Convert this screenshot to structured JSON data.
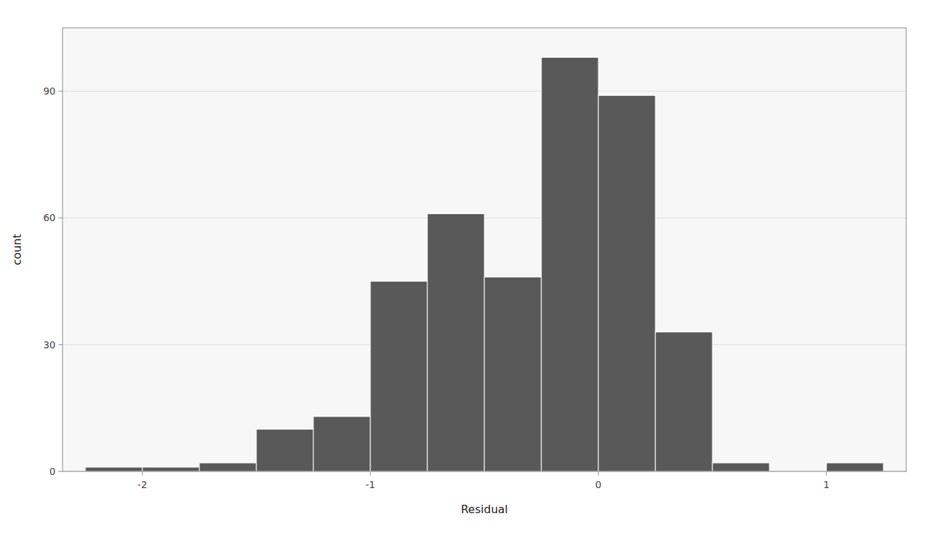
{
  "chart_data": {
    "type": "histogram",
    "xlabel": "Residual",
    "ylabel": "count",
    "bins": [
      -2.25,
      -2.0,
      -1.75,
      -1.5,
      -1.25,
      -1.0,
      -0.75,
      -0.5,
      -0.25,
      0.0,
      0.25,
      0.5,
      0.75,
      1.0,
      1.25
    ],
    "values": [
      1,
      1,
      2,
      10,
      13,
      45,
      61,
      46,
      98,
      89,
      33,
      2,
      0,
      2
    ],
    "color": "#595959",
    "xlim": [
      -2.35,
      1.35
    ],
    "xticks": [
      -2,
      -1,
      0,
      1
    ],
    "ylim": [
      0,
      105
    ],
    "yticks": [
      0,
      30,
      60,
      90
    ],
    "grid": true
  }
}
